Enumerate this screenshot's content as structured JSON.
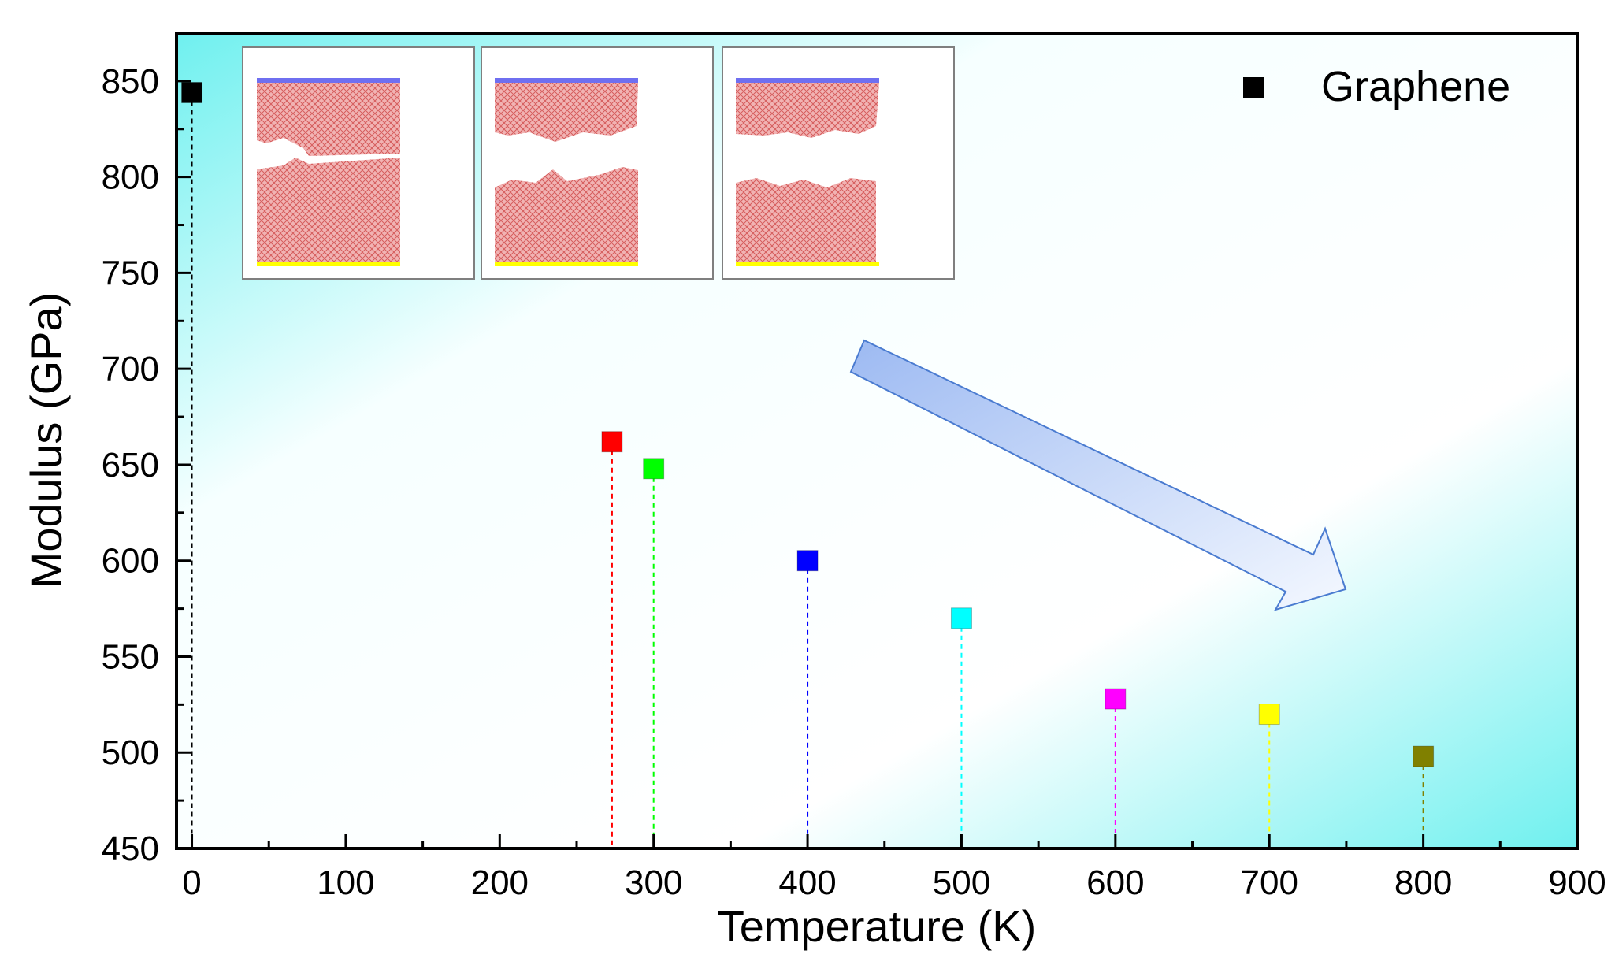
{
  "chart_data": {
    "type": "scatter",
    "title": "",
    "xlabel": "Temperature (K)",
    "ylabel": "Modulus (GPa)",
    "xlim": [
      -10,
      900
    ],
    "ylim": [
      450,
      875
    ],
    "xticks": [
      0,
      100,
      200,
      300,
      400,
      500,
      600,
      700,
      800,
      900
    ],
    "yticks": [
      450,
      500,
      550,
      600,
      650,
      700,
      750,
      800,
      850
    ],
    "legend": {
      "position": "top-right",
      "entries": [
        {
          "label": "Graphene",
          "color": "#000000",
          "marker": "square"
        }
      ]
    },
    "points": [
      {
        "x": 0,
        "y": 844,
        "color": "#000000"
      },
      {
        "x": 273,
        "y": 662,
        "color": "#ff0000"
      },
      {
        "x": 300,
        "y": 648,
        "color": "#00ff00"
      },
      {
        "x": 400,
        "y": 600,
        "color": "#0000ff"
      },
      {
        "x": 500,
        "y": 570,
        "color": "#00ffff"
      },
      {
        "x": 600,
        "y": 528,
        "color": "#ff00ff"
      },
      {
        "x": 700,
        "y": 520,
        "color": "#ffff00"
      },
      {
        "x": 800,
        "y": 498,
        "color": "#808000"
      }
    ],
    "annotations": [
      {
        "type": "arrow",
        "description": "trend arrow pointing down-right",
        "color": "#a8c4f5"
      },
      {
        "type": "inset-images",
        "count": 3,
        "description": "fractured graphene sheet snapshots"
      }
    ],
    "background_gradient": [
      "#7ff5f2",
      "#ffffff"
    ]
  }
}
